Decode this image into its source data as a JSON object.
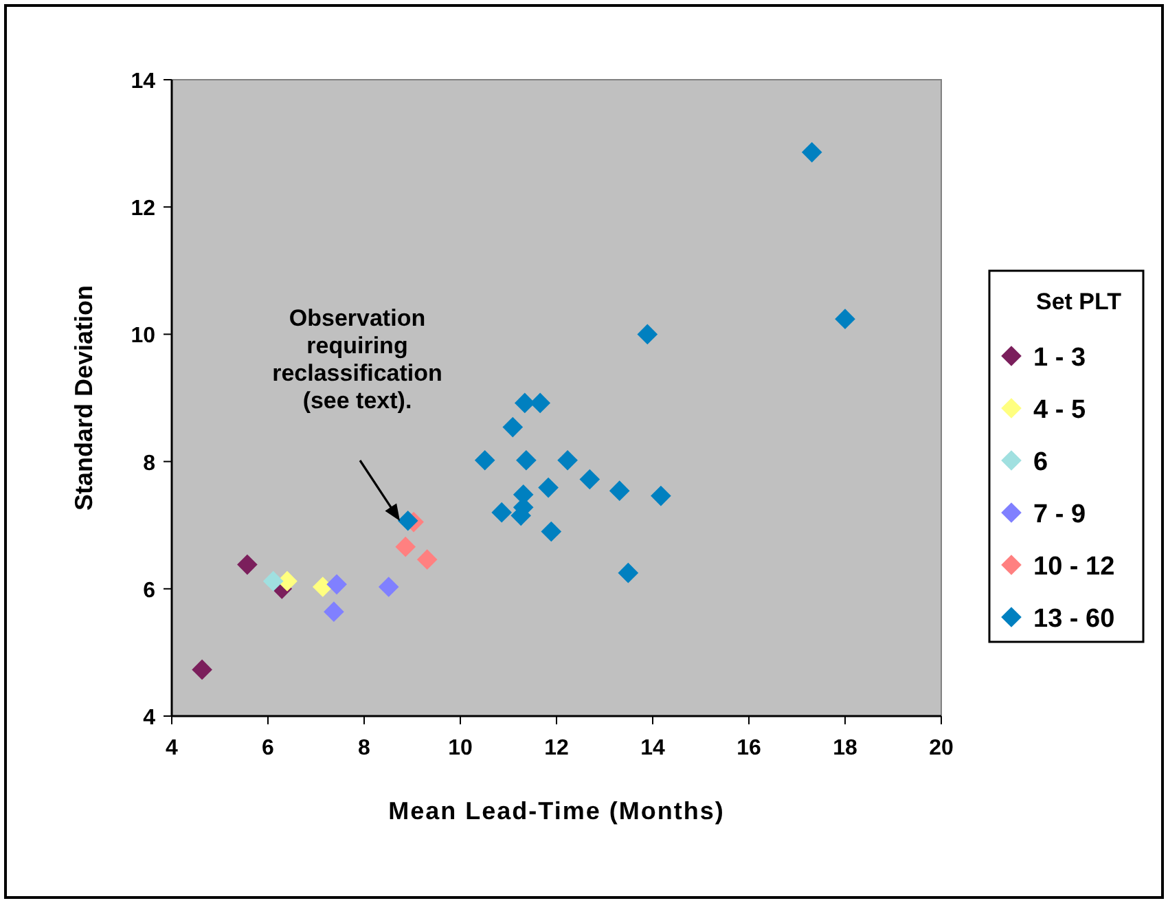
{
  "chart_data": {
    "type": "scatter",
    "xlabel": "Mean Lead-Time (Months)",
    "ylabel": "Standard Deviation",
    "legend_title": "Set PLT",
    "xlim": [
      4,
      20
    ],
    "ylim": [
      4,
      14
    ],
    "xticks": [
      4,
      6,
      8,
      10,
      12,
      14,
      16,
      18,
      20
    ],
    "yticks": [
      4,
      6,
      8,
      10,
      12,
      14
    ],
    "grid": false,
    "legend": "right",
    "marker": "diamond",
    "annotations": [
      "Observation requiring reclassification (see text)."
    ],
    "series": [
      {
        "name": "1 - 3",
        "color": "#7b1f5c",
        "x": [
          4.63,
          5.57,
          6.29
        ],
        "values": [
          4.73,
          6.38,
          6.0
        ]
      },
      {
        "name": "4 - 5",
        "color": "#ffff80",
        "x": [
          6.4,
          7.14
        ],
        "values": [
          6.12,
          6.03
        ]
      },
      {
        "name": "6",
        "color": "#a0e0e0",
        "x": [
          6.11
        ],
        "values": [
          6.12
        ]
      },
      {
        "name": "7 - 9",
        "color": "#8080ff",
        "x": [
          7.43,
          7.37,
          8.51
        ],
        "values": [
          6.07,
          5.64,
          6.03
        ]
      },
      {
        "name": "10 - 12",
        "color": "#ff8080",
        "x": [
          9.03,
          8.86,
          9.31
        ],
        "values": [
          7.05,
          6.66,
          6.46
        ]
      },
      {
        "name": "13 - 60",
        "color": "#0080c0",
        "x": [
          8.91,
          13.89,
          11.34,
          11.66,
          11.09,
          10.51,
          11.37,
          12.23,
          12.69,
          13.31,
          14.17,
          11.83,
          11.31,
          11.31,
          11.26,
          10.86,
          11.89,
          13.49,
          17.31,
          18.0
        ],
        "values": [
          7.07,
          10.0,
          8.92,
          8.92,
          8.54,
          8.02,
          8.02,
          8.02,
          7.72,
          7.54,
          7.46,
          7.59,
          7.48,
          7.28,
          7.15,
          7.2,
          6.9,
          6.25,
          12.86,
          10.24
        ]
      }
    ]
  }
}
